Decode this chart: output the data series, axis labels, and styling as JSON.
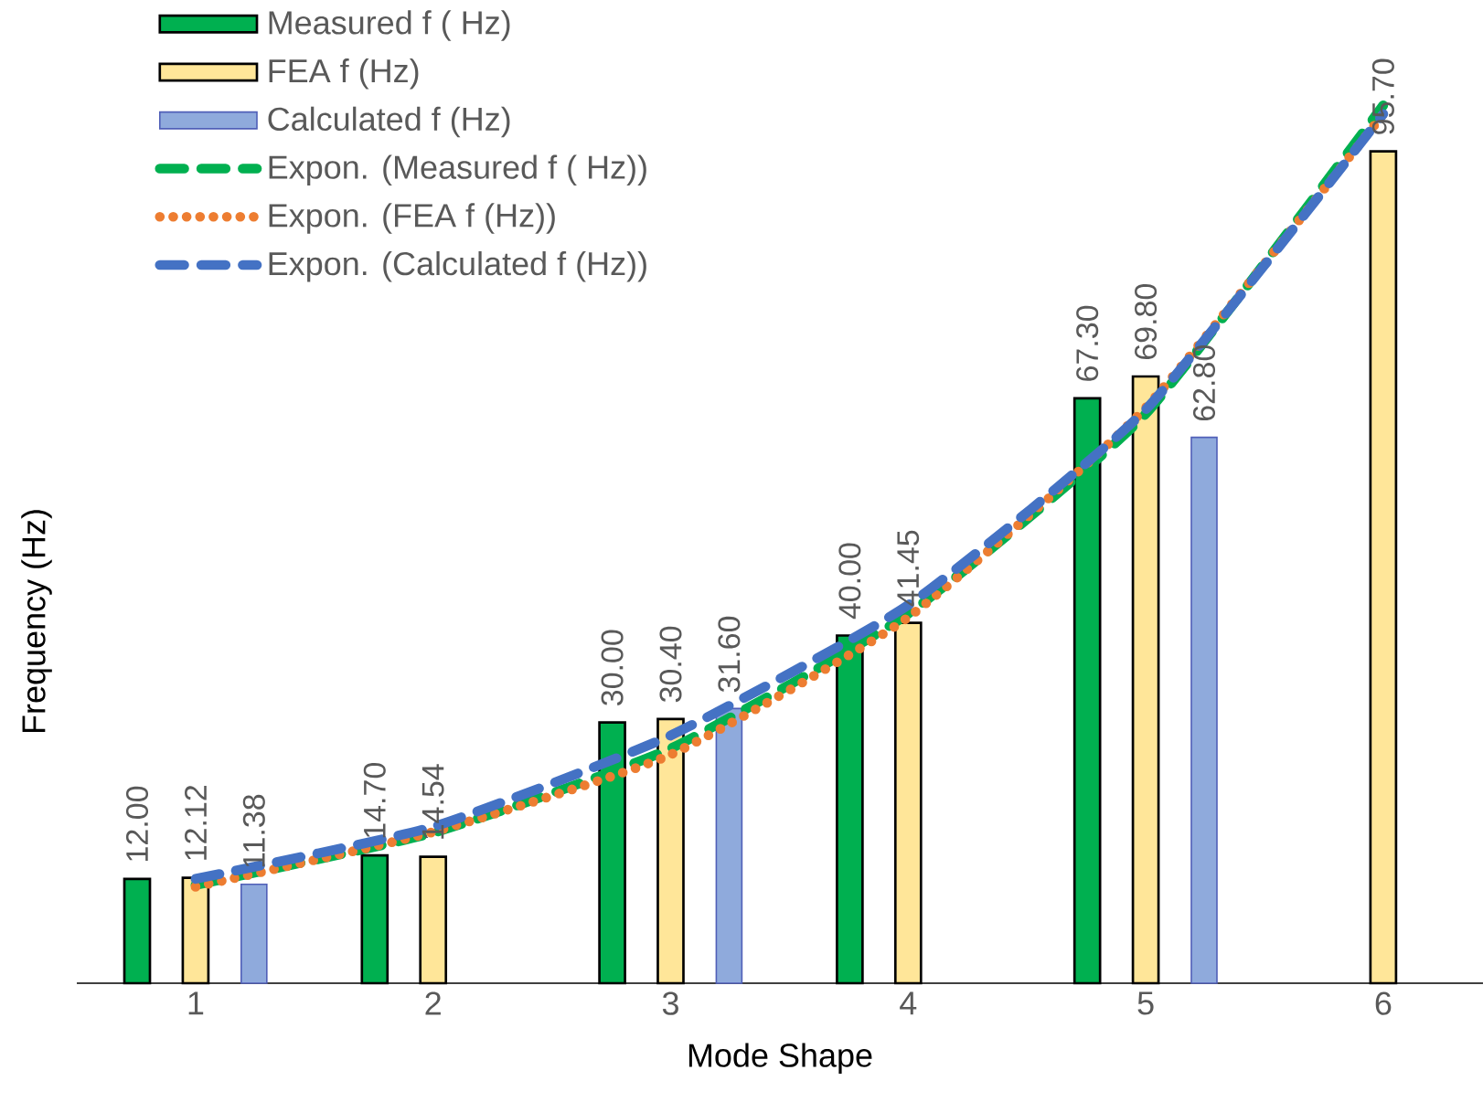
{
  "chart_data": {
    "type": "bar",
    "xlabel": "Mode Shape",
    "ylabel": "Frequency (Hz)",
    "categories": [
      "1",
      "2",
      "3",
      "4",
      "5",
      "6"
    ],
    "legend": "top left",
    "tick_labels": "x",
    "series": [
      {
        "name": "Measured f ( Hz)",
        "color": "#00b050",
        "values": [
          12.0,
          14.7,
          30.0,
          40.0,
          67.3,
          null
        ],
        "value_labels": [
          "12.00",
          "14.70",
          "30.00",
          "40.00",
          "67.30",
          null
        ]
      },
      {
        "name": "FEA f (Hz)",
        "color": "#ffe699",
        "values": [
          12.12,
          14.54,
          30.4,
          41.45,
          69.8,
          95.7
        ],
        "value_labels": [
          "12.12",
          "14.54",
          "30.40",
          "41.45",
          "69.80",
          "95.70"
        ]
      },
      {
        "name": "Calculated f (Hz)",
        "color": "#8faadc",
        "values": [
          11.38,
          null,
          31.6,
          null,
          62.8,
          null
        ],
        "value_labels": [
          "11.38",
          null,
          "31.60",
          null,
          "62.80",
          null
        ]
      },
      {
        "name": "Expon. (Measured f ( Hz))",
        "type": "line",
        "color": "#00b050",
        "line_style": "dashed",
        "values": [
          11.3,
          17.3,
          27.0,
          42.5,
          65.5,
          101.0
        ]
      },
      {
        "name": "Expon. (FEA f (Hz))",
        "type": "line",
        "color": "#ed7d31",
        "line_style": "dotted",
        "values": [
          11.1,
          17.4,
          26.3,
          42.1,
          66.2,
          100.0
        ]
      },
      {
        "name": "Expon. (Calculated f (Hz))",
        "type": "line",
        "color": "#4472c4",
        "line_style": "dashed",
        "values": [
          12.0,
          18.0,
          28.5,
          43.5,
          66.0,
          100.0
        ]
      }
    ]
  }
}
